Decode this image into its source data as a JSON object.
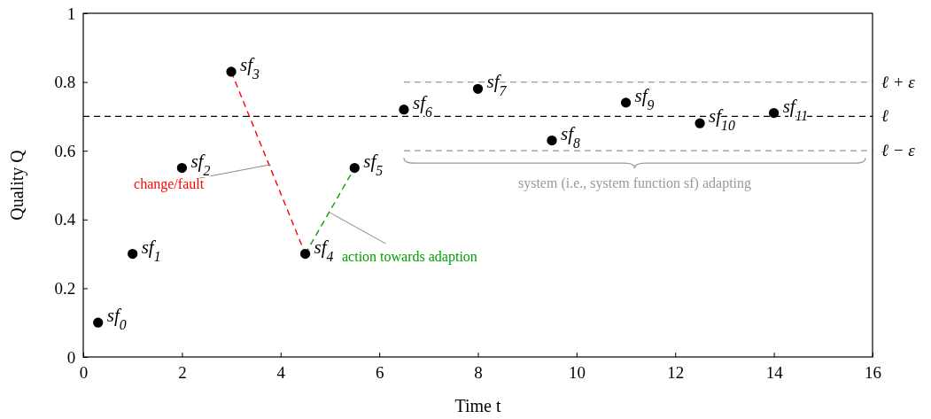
{
  "chart_data": {
    "type": "scatter",
    "xlabel": "Time t",
    "ylabel": "Quality Q",
    "xlim": [
      0,
      16
    ],
    "xticks": [
      0,
      2,
      4,
      6,
      8,
      10,
      12,
      14,
      16
    ],
    "ylim": [
      0,
      1
    ],
    "yticks": [
      0,
      0.2,
      0.4,
      0.6,
      0.8,
      1
    ],
    "grid": false,
    "marker": "circle",
    "series": [
      {
        "type": "line",
        "color": "#ff0000",
        "line_style": "dashed",
        "marker": "none",
        "x": [
          3,
          4.5
        ],
        "values": [
          0.83,
          0.3
        ]
      },
      {
        "type": "line",
        "color": "#00a000",
        "line_style": "dashed",
        "marker": "none",
        "x": [
          4.5,
          5.5
        ],
        "values": [
          0.3,
          0.55
        ]
      },
      {
        "color": "#000000",
        "x": [
          0.3,
          1,
          2,
          3,
          4.5,
          5.5,
          6.5,
          8,
          9.5,
          11,
          12.5,
          14
        ],
        "values": [
          0.1,
          0.3,
          0.55,
          0.83,
          0.3,
          0.55,
          0.72,
          0.78,
          0.63,
          0.74,
          0.68,
          0.71
        ]
      }
    ],
    "ref_lines": [
      {
        "axis": "y",
        "value": 0.8,
        "label": "ℓ + ε",
        "color": "#999999",
        "line_style": "dashed"
      },
      {
        "axis": "y",
        "value": 0.7,
        "label": "ℓ",
        "color": "#000000",
        "line_style": "dashed"
      },
      {
        "axis": "y",
        "value": 0.6,
        "label": "ℓ − ε",
        "color": "#999999",
        "line_style": "dashed"
      }
    ],
    "annotations": [
      {
        "text": "change/fault",
        "x": 3.8,
        "y": 0.56
      },
      {
        "text": "action towards adaption",
        "x": 5,
        "y": 0.42
      },
      "system (i.e., system function sf) adapting",
      {
        "text": "sf$_{0}$",
        "x": 0.3,
        "y": 0.1
      },
      {
        "text": "sf$_{1}$",
        "x": 1,
        "y": 0.3
      },
      {
        "text": "sf$_{2}$",
        "x": 2,
        "y": 0.55
      },
      {
        "text": "sf$_{3}$",
        "x": 3,
        "y": 0.83
      },
      {
        "text": "sf$_{4}$",
        "x": 4.5,
        "y": 0.3
      },
      {
        "text": "sf$_{5}$",
        "x": 5.5,
        "y": 0.55
      },
      {
        "text": "sf$_{6}$",
        "x": 6.5,
        "y": 0.72
      },
      {
        "text": "sf$_{7}$",
        "x": 8,
        "y": 0.78
      },
      {
        "text": "sf$_{8}$",
        "x": 9.5,
        "y": 0.63
      },
      {
        "text": "sf$_{9}$",
        "x": 11,
        "y": 0.74
      },
      {
        "text": "sf$_{10}$",
        "x": 12.5,
        "y": 0.68
      },
      {
        "text": "sf$_{11}$",
        "x": 14,
        "y": 0.71
      }
    ]
  }
}
